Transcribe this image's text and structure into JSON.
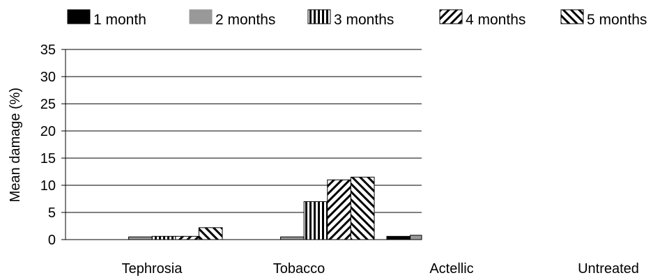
{
  "chart_data": {
    "type": "bar",
    "title": "",
    "xlabel": "",
    "ylabel": "Mean damage (%)",
    "ylim": [
      0,
      35
    ],
    "yticks": [
      0,
      5,
      10,
      15,
      20,
      25,
      30,
      35
    ],
    "grid": true,
    "legend_position": "top",
    "categories": [
      "Tephrosia",
      "Tobacco",
      "Actellic",
      "Untreated"
    ],
    "series": [
      {
        "name": "1 month",
        "pattern": "solid-black",
        "values": [
          0.0,
          0.0,
          0.6,
          null
        ]
      },
      {
        "name": "2 months",
        "pattern": "solid-gray",
        "values": [
          0.5,
          0.5,
          0.8,
          null
        ]
      },
      {
        "name": "3 months",
        "pattern": "vertical",
        "values": [
          0.6,
          7.0,
          null,
          null
        ]
      },
      {
        "name": "4 months",
        "pattern": "diag-up",
        "values": [
          0.6,
          11.0,
          null,
          null
        ]
      },
      {
        "name": "5 months",
        "pattern": "diag-down",
        "values": [
          2.2,
          11.5,
          null,
          null
        ]
      }
    ]
  }
}
